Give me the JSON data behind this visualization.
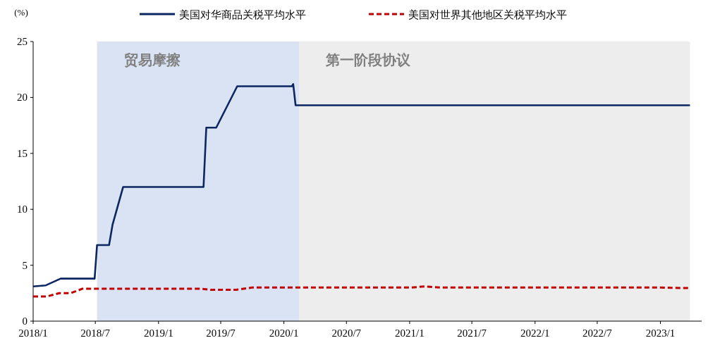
{
  "chart_data": {
    "type": "line",
    "ylabel": "(%)",
    "legend": "top",
    "xlim": [
      "2018-01-01",
      "2023-05-01"
    ],
    "ylim": [
      0,
      25
    ],
    "yticks": [
      0,
      5,
      10,
      15,
      20,
      25
    ],
    "xticks": [
      {
        "value": "2018-01-01",
        "label": "2018/1"
      },
      {
        "value": "2018-07-01",
        "label": "2018/7"
      },
      {
        "value": "2019-01-01",
        "label": "2019/1"
      },
      {
        "value": "2019-07-01",
        "label": "2019/7"
      },
      {
        "value": "2020-01-01",
        "label": "2020/1"
      },
      {
        "value": "2020-07-01",
        "label": "2020/7"
      },
      {
        "value": "2021-01-01",
        "label": "2021/1"
      },
      {
        "value": "2021-07-01",
        "label": "2021/7"
      },
      {
        "value": "2022-01-01",
        "label": "2022/1"
      },
      {
        "value": "2022-07-01",
        "label": "2022/7"
      },
      {
        "value": "2023-01-01",
        "label": "2023/1"
      }
    ],
    "bands": [
      {
        "axis": "x",
        "from": "2018-07-06",
        "to": "2020-02-14",
        "label": "贸易摩擦",
        "color": "#dae3f3"
      },
      {
        "axis": "x",
        "from": "2020-02-14",
        "to": "2023-03-28",
        "label": "第一阶段协议",
        "color": "#ededed"
      }
    ],
    "series": [
      {
        "name": "美国对华商品关税平均水平",
        "color": "#0b2660",
        "line_style": "solid",
        "x": [
          "2018-01-01",
          "2018-02-07",
          "2018-03-22",
          "2018-06-29",
          "2018-07-06",
          "2018-08-10",
          "2018-08-20",
          "2018-09-20",
          "2019-05-12",
          "2019-05-20",
          "2019-06-18",
          "2019-08-18",
          "2020-01-24",
          "2020-01-28",
          "2020-02-04",
          "2023-03-28"
        ],
        "values": [
          3.1,
          3.2,
          3.8,
          3.8,
          6.8,
          6.8,
          8.6,
          12.0,
          12.0,
          17.3,
          17.3,
          21.0,
          21.0,
          21.2,
          19.3,
          19.3
        ]
      },
      {
        "name": "美国对世界其他地区关税平均水平",
        "color": "#c00000",
        "line_style": "dashed",
        "x": [
          "2018-01-01",
          "2018-02-10",
          "2018-03-18",
          "2018-04-20",
          "2018-05-25",
          "2019-05-01",
          "2019-06-01",
          "2019-08-15",
          "2019-10-01",
          "2020-02-14",
          "2021-01-01",
          "2021-02-15",
          "2021-04-01",
          "2023-01-01",
          "2023-03-28"
        ],
        "values": [
          2.2,
          2.2,
          2.5,
          2.5,
          2.9,
          2.9,
          2.8,
          2.8,
          3.0,
          3.0,
          3.0,
          3.1,
          3.0,
          3.0,
          2.95
        ]
      }
    ]
  }
}
